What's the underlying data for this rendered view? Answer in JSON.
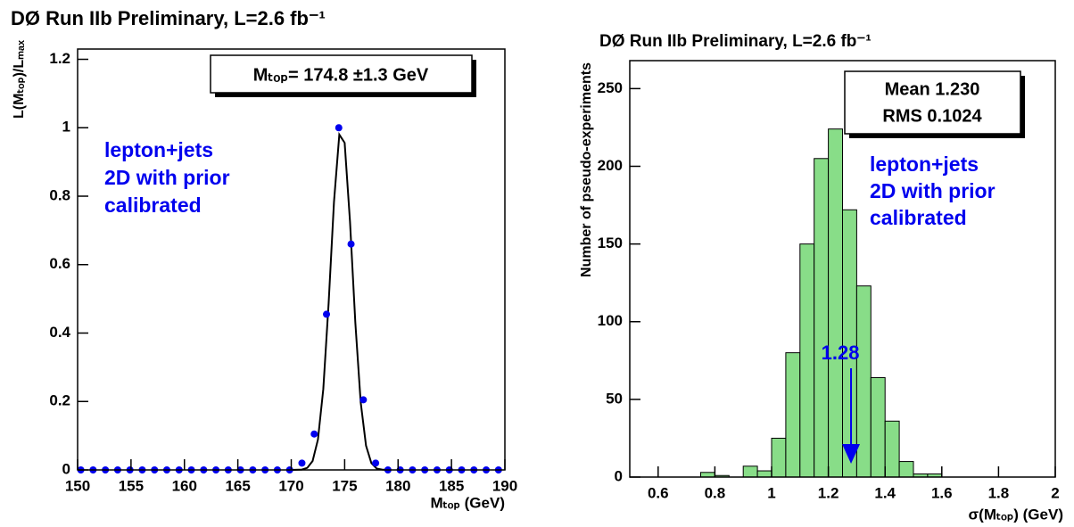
{
  "chart_data": [
    {
      "type": "scatter",
      "title": "DØ Run IIb Preliminary, L=2.6 fb⁻¹",
      "xlabel": "Mₜₒₚ (GeV)",
      "ylabel": "L(Mₜₒₚ)/Lₘₐₓ",
      "result": "Mₜₒₚ= 174.8 ±1.3 GeV",
      "annotation": [
        "lepton+jets",
        "2D with prior",
        "calibrated"
      ],
      "x": [
        150.3,
        151.45,
        152.6,
        153.75,
        154.9,
        156.05,
        157.2,
        158.35,
        159.5,
        160.65,
        161.8,
        162.95,
        164.1,
        165.25,
        166.4,
        167.55,
        168.7,
        169.85,
        171,
        172.15,
        173.3,
        174.45,
        175.6,
        176.75,
        177.9,
        179.05,
        180.2,
        181.35,
        182.5,
        183.65,
        184.8,
        185.95,
        187.1,
        188.25,
        189.4
      ],
      "values": [
        0,
        0,
        0,
        0,
        0,
        0,
        0,
        0,
        0,
        0,
        0,
        0,
        0,
        0,
        0,
        0,
        0,
        0,
        0.02,
        0.105,
        0.455,
        1,
        0.66,
        0.205,
        0.02,
        0,
        0,
        0,
        0,
        0,
        0,
        0,
        0,
        0,
        0
      ],
      "color": "#0000ee",
      "fit": {
        "x": [
          170,
          171,
          171.5,
          172,
          172.5,
          173,
          173.5,
          174,
          174.5,
          175,
          175.5,
          176,
          176.5,
          177,
          177.5,
          178,
          178.5,
          179
        ],
        "values": [
          0,
          0.001,
          0.006,
          0.026,
          0.089,
          0.236,
          0.487,
          0.783,
          0.98,
          0.956,
          0.726,
          0.43,
          0.198,
          0.071,
          0.02,
          0.004,
          0.001,
          0
        ],
        "color": "#000000"
      },
      "xlim": [
        150,
        190
      ],
      "ylim": [
        0,
        1.23
      ],
      "xticks": [
        150,
        155,
        160,
        165,
        170,
        175,
        180,
        185,
        190
      ],
      "yticks": [
        0,
        0.2,
        0.4,
        0.6,
        0.8,
        1,
        1.2
      ]
    },
    {
      "type": "histogram",
      "title": "DØ Run IIb Preliminary, L=2.6 fb⁻¹",
      "xlabel": "σ(Mₜₒₚ) (GeV)",
      "ylabel": "Number of pseudo-experiments",
      "stats": [
        "Mean 1.230",
        "RMS 0.1024"
      ],
      "annotation": [
        "lepton+jets",
        "2D with prior",
        "calibrated"
      ],
      "arrow_x": 1.28,
      "arrow_color": "#0000ee",
      "bins": [
        0.5,
        0.55,
        0.6,
        0.65,
        0.7,
        0.75,
        0.8,
        0.85,
        0.9,
        0.95,
        1,
        1.05,
        1.1,
        1.15,
        1.2,
        1.25,
        1.3,
        1.35,
        1.4,
        1.45,
        1.5,
        1.55,
        1.6,
        1.65,
        1.7,
        1.75,
        1.8,
        1.85,
        1.9,
        1.95,
        2
      ],
      "values": [
        0,
        0,
        0,
        0,
        0,
        3,
        1,
        0,
        7,
        4,
        25,
        80,
        150,
        205,
        224,
        172,
        123,
        64,
        36,
        10,
        2,
        2,
        0,
        0,
        0,
        0,
        0,
        0,
        0,
        0
      ],
      "color": "#88dd88",
      "xlim": [
        0.5,
        2
      ],
      "ylim": [
        0,
        268
      ],
      "xticks": [
        0.6,
        0.8,
        1,
        1.2,
        1.4,
        1.6,
        1.8,
        2
      ],
      "yticks": [
        0,
        50,
        100,
        150,
        200,
        250
      ]
    }
  ]
}
